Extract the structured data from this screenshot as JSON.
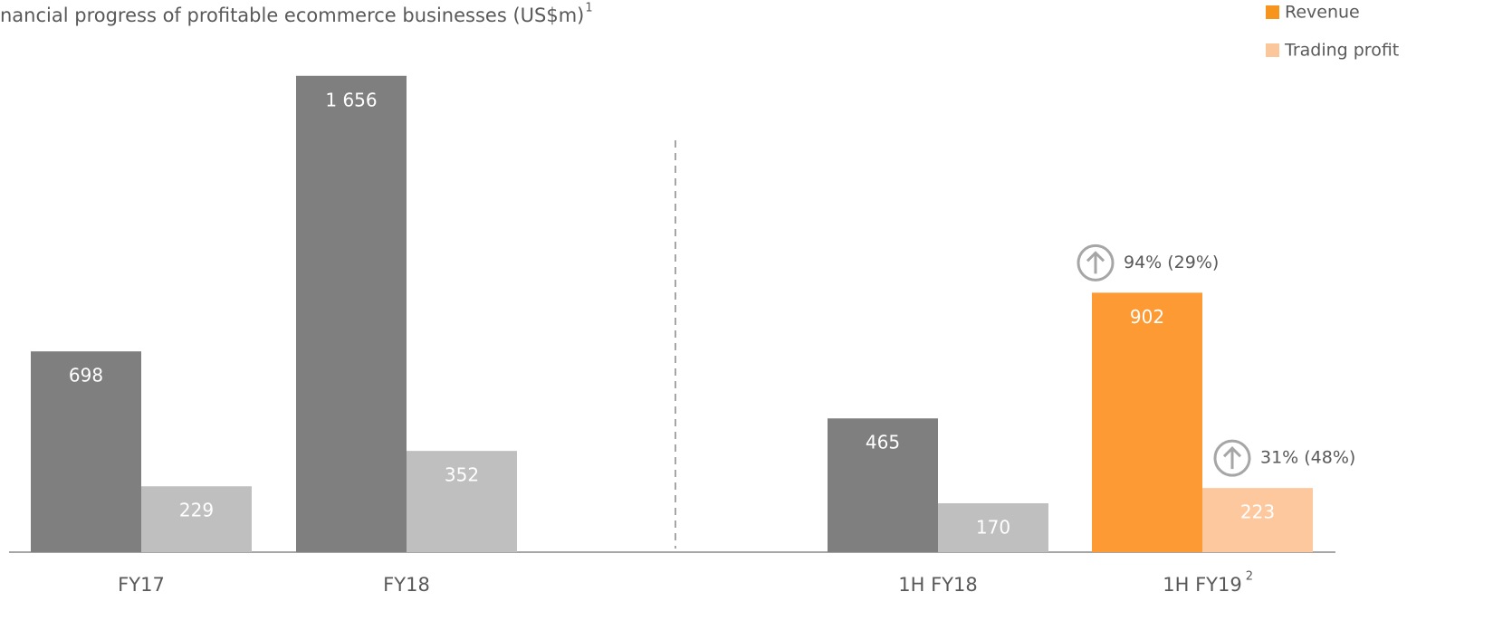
{
  "chart_data": {
    "type": "bar",
    "title": "nancial progress of profitable ecommerce businesses (US$m)",
    "title_superscript": "1",
    "categories": [
      "FY17",
      "FY18",
      "1H FY18",
      "1H FY19"
    ],
    "category_superscripts": [
      null,
      null,
      null,
      "2"
    ],
    "series": [
      {
        "name": "Revenue",
        "color": "#f7941d",
        "colors": [
          "#7f7f7f",
          "#7f7f7f",
          "#7f7f7f",
          "#fd9a33"
        ],
        "values": [
          698,
          1656,
          465,
          902
        ],
        "value_labels": [
          "698",
          "1 656",
          "465",
          "902"
        ],
        "growth_labels": [
          null,
          null,
          null,
          "94% (29%)"
        ]
      },
      {
        "name": "Trading profit",
        "color": "#fcc69b",
        "colors": [
          "#bfbfbf",
          "#bfbfbf",
          "#bfbfbf",
          "#fec89e"
        ],
        "values": [
          229,
          352,
          170,
          223
        ],
        "growth_labels": [
          null,
          null,
          null,
          "31% (48%)"
        ]
      }
    ],
    "ylim": [
      0,
      1800
    ],
    "legend": "top-right"
  }
}
